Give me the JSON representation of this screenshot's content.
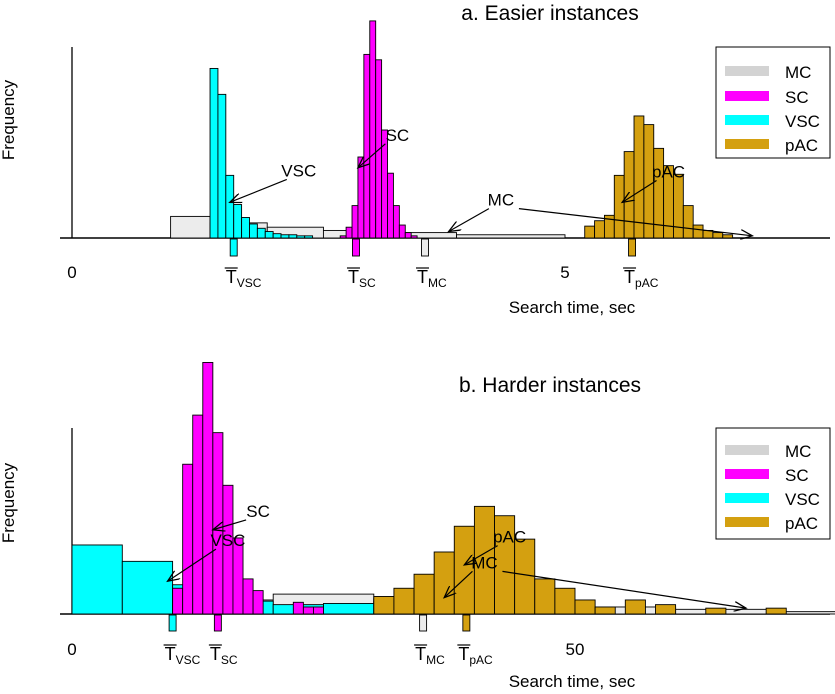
{
  "colors": {
    "MC": "#ececec",
    "SC": "#ff00ff",
    "VSC": "#00ffff",
    "pAC": "#d4a010"
  },
  "chart_data": [
    {
      "type": "bar",
      "title": "a. Easier instances",
      "xlabel": "Search time, sec",
      "ylabel": "Frequency",
      "xlim": [
        0,
        7.6
      ],
      "ylim": [
        0,
        220
      ],
      "xticks": [
        {
          "v": 0,
          "label": "0"
        },
        {
          "v": 5,
          "label": "5"
        }
      ],
      "legend": {
        "position": "top-right",
        "items": [
          "MC",
          "SC",
          "VSC",
          "pAC"
        ]
      },
      "series": [
        {
          "name": "MC",
          "key": "MC",
          "bins": [
            [
              1.0,
              1.4,
              20
            ],
            [
              1.4,
              1.98,
              14
            ],
            [
              1.98,
              2.55,
              10
            ],
            [
              2.55,
              3.17,
              7
            ],
            [
              3.17,
              3.9,
              5
            ],
            [
              3.9,
              5.0,
              3
            ]
          ]
        },
        {
          "name": "SC",
          "key": "SC",
          "bins": [
            [
              2.72,
              2.78,
              2
            ],
            [
              2.78,
              2.84,
              10
            ],
            [
              2.84,
              2.9,
              30
            ],
            [
              2.9,
              2.96,
              75
            ],
            [
              2.96,
              3.02,
              170
            ],
            [
              3.02,
              3.08,
              201
            ],
            [
              3.08,
              3.14,
              165
            ],
            [
              3.14,
              3.2,
              100
            ],
            [
              3.2,
              3.26,
              60
            ],
            [
              3.26,
              3.32,
              30
            ],
            [
              3.32,
              3.38,
              12
            ],
            [
              3.38,
              3.44,
              5
            ],
            [
              3.44,
              3.5,
              2
            ]
          ]
        },
        {
          "name": "VSC",
          "key": "VSC",
          "bins": [
            [
              1.4,
              1.48,
              157
            ],
            [
              1.48,
              1.56,
              133
            ],
            [
              1.56,
              1.64,
              58
            ],
            [
              1.64,
              1.72,
              31
            ],
            [
              1.72,
              1.8,
              19
            ],
            [
              1.8,
              1.88,
              13
            ],
            [
              1.88,
              1.96,
              9
            ],
            [
              1.96,
              2.04,
              6
            ],
            [
              2.04,
              2.12,
              4
            ],
            [
              2.12,
              2.2,
              3
            ],
            [
              2.2,
              2.28,
              3
            ],
            [
              2.28,
              2.36,
              2
            ],
            [
              2.36,
              2.44,
              2
            ]
          ]
        },
        {
          "name": "pAC",
          "key": "pAC",
          "bins": [
            [
              5.2,
              5.3,
              11
            ],
            [
              5.3,
              5.4,
              16
            ],
            [
              5.4,
              5.5,
              21
            ],
            [
              5.5,
              5.6,
              58
            ],
            [
              5.6,
              5.7,
              80
            ],
            [
              5.7,
              5.8,
              113
            ],
            [
              5.8,
              5.9,
              105
            ],
            [
              5.9,
              6.0,
              83
            ],
            [
              6.0,
              6.1,
              67
            ],
            [
              6.1,
              6.2,
              59
            ],
            [
              6.2,
              6.3,
              30
            ],
            [
              6.3,
              6.4,
              12
            ],
            [
              6.4,
              6.5,
              7
            ],
            [
              6.5,
              6.6,
              5
            ],
            [
              6.6,
              6.7,
              3
            ]
          ]
        }
      ],
      "means": [
        {
          "key": "VSC",
          "x": 1.64,
          "label": "T",
          "sub": "VSC"
        },
        {
          "key": "SC",
          "x": 2.88,
          "label": "T",
          "sub": "SC"
        },
        {
          "key": "MC",
          "x": 3.58,
          "label": "T",
          "sub": "MC"
        },
        {
          "key": "pAC",
          "x": 5.68,
          "label": "T",
          "sub": "pAC"
        }
      ],
      "annotations": [
        {
          "text": "VSC",
          "tx": 2.3,
          "ty": 57,
          "ax": 1.6,
          "ay": 33
        },
        {
          "text": "SC",
          "tx": 3.3,
          "ty": 90,
          "ax": 2.9,
          "ay": 65
        },
        {
          "text": "MC",
          "tx": 4.35,
          "ty": 30,
          "ax": 3.82,
          "ay": 6,
          "ex": 6.9,
          "ey": 2
        },
        {
          "text": "pAC",
          "tx": 6.05,
          "ty": 56,
          "ax": 5.58,
          "ay": 33
        }
      ]
    },
    {
      "type": "bar",
      "title": "b. Harder instances",
      "xlabel": "Search time, sec",
      "ylabel": "Frequency",
      "xlim": [
        0,
        76
      ],
      "ylim": [
        0,
        220
      ],
      "xticks": [
        {
          "v": 0,
          "label": "0"
        },
        {
          "v": 50,
          "label": "50"
        }
      ],
      "legend": {
        "position": "top-right",
        "items": [
          "MC",
          "SC",
          "VSC",
          "pAC"
        ]
      },
      "series": [
        {
          "name": "MC",
          "key": "MC",
          "bins": [
            [
              10,
              20,
              12
            ],
            [
              20,
              30,
              17
            ],
            [
              30,
              40,
              13
            ],
            [
              40,
              50,
              9
            ],
            [
              50,
              60,
              6
            ],
            [
              60,
              70,
              4
            ],
            [
              70,
              76,
              2
            ]
          ]
        },
        {
          "name": "SC",
          "key": "SC",
          "bins": [
            [
              10,
              11,
              22
            ],
            [
              11,
              12,
              128
            ],
            [
              11,
              12,
              0
            ],
            [
              12,
              13,
              170
            ],
            [
              13,
              14,
              215
            ],
            [
              14,
              15,
              155
            ],
            [
              15,
              16,
              110
            ],
            [
              16,
              17,
              65
            ],
            [
              17,
              18,
              30
            ],
            [
              18,
              19,
              20
            ],
            [
              22,
              23,
              10
            ],
            [
              23,
              24,
              6
            ],
            [
              24,
              25,
              6
            ]
          ]
        },
        {
          "name": "VSC",
          "key": "VSC",
          "bins": [
            [
              0,
              5,
              59
            ],
            [
              5,
              10,
              45
            ],
            [
              10,
              15,
              25
            ],
            [
              15,
              20,
              11
            ],
            [
              20,
              25,
              8
            ],
            [
              25,
              30,
              9
            ],
            [
              30,
              40,
              11
            ]
          ]
        },
        {
          "name": "pAC",
          "key": "pAC",
          "bins": [
            [
              30,
              32,
              15
            ],
            [
              32,
              34,
              22
            ],
            [
              34,
              36,
              34
            ],
            [
              36,
              38,
              53
            ],
            [
              38,
              40,
              75
            ],
            [
              40,
              42,
              92
            ],
            [
              42,
              44,
              84
            ],
            [
              44,
              46,
              64
            ],
            [
              46,
              48,
              30
            ],
            [
              48,
              50,
              22
            ],
            [
              50,
              52,
              12
            ],
            [
              52,
              54,
              6
            ],
            [
              55,
              57,
              12
            ],
            [
              58,
              60,
              8
            ],
            [
              63,
              65,
              5
            ],
            [
              69,
              71,
              5
            ]
          ]
        }
      ],
      "means": [
        {
          "key": "VSC",
          "x": 10,
          "label": "T",
          "sub": "VSC"
        },
        {
          "key": "SC",
          "x": 14.5,
          "label": "T",
          "sub": "SC"
        },
        {
          "key": "MC",
          "x": 34.9,
          "label": "T",
          "sub": "MC"
        },
        {
          "key": "pAC",
          "x": 39.2,
          "label": "T",
          "sub": "pAC"
        }
      ],
      "annotations": [
        {
          "text": "SC",
          "tx": 18.5,
          "ty": 83,
          "ax": 14,
          "ay": 72
        },
        {
          "text": "VSC",
          "tx": 15.5,
          "ty": 58,
          "ax": 9.5,
          "ay": 28
        },
        {
          "text": "pAC",
          "tx": 43.5,
          "ty": 61,
          "ax": 39,
          "ay": 42
        },
        {
          "text": "MC",
          "tx": 41,
          "ty": 39,
          "ax": 37,
          "ay": 14,
          "ex": 67,
          "ey": 5
        }
      ]
    }
  ]
}
